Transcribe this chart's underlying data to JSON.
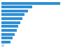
{
  "values": [
    2000,
    1050,
    900,
    780,
    700,
    640,
    580,
    520,
    460,
    390,
    320,
    100
  ],
  "bar_color": "#2D8FD5",
  "last_bar_color": "#C5DCF0",
  "background_color": "#ffffff",
  "xlim": [
    0,
    2300
  ],
  "figsize": [
    1.0,
    0.71
  ],
  "bar_height": 0.72
}
